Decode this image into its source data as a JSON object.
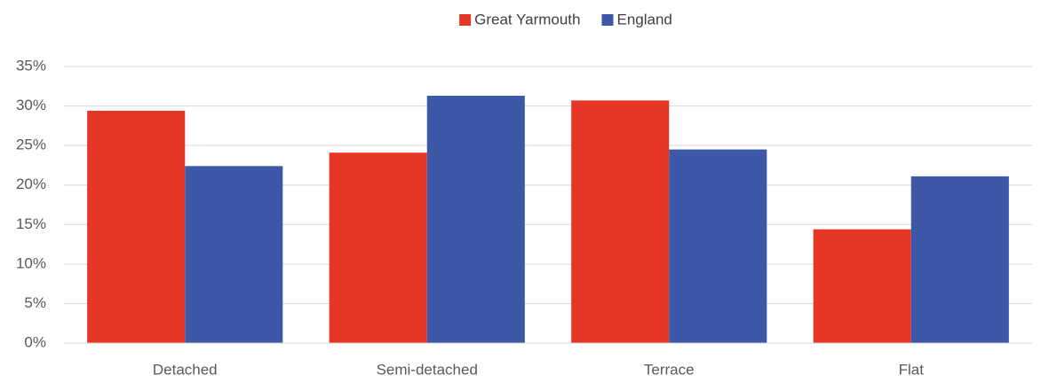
{
  "chart_data": {
    "type": "bar",
    "categories": [
      "Detached",
      "Semi-detached",
      "Terrace",
      "Flat"
    ],
    "series": [
      {
        "name": "Great Yarmouth",
        "color": "#e63626",
        "values": [
          29.4,
          24.1,
          30.7,
          14.4
        ]
      },
      {
        "name": "England",
        "color": "#3c58a6",
        "values": [
          22.4,
          31.3,
          24.5,
          21.1
        ]
      }
    ],
    "ylim": [
      0,
      35
    ],
    "yticks": [
      {
        "value": 0,
        "label": "0%"
      },
      {
        "value": 5,
        "label": "5%"
      },
      {
        "value": 10,
        "label": "10%"
      },
      {
        "value": 15,
        "label": "15%"
      },
      {
        "value": 20,
        "label": "20%"
      },
      {
        "value": 25,
        "label": "25%"
      },
      {
        "value": 30,
        "label": "30%"
      },
      {
        "value": 35,
        "label": "35%"
      }
    ],
    "grid": true,
    "legend": "top"
  }
}
